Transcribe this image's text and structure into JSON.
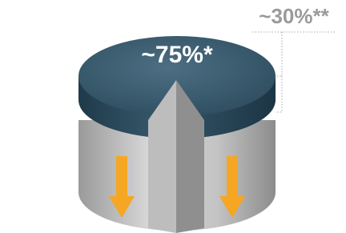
{
  "labels": {
    "top": "~75%*",
    "side": "~30%**"
  }
}
